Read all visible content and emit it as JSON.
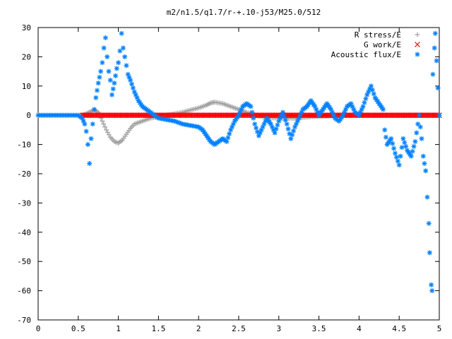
{
  "chart_data": {
    "type": "scatter",
    "title": "m2/n1.5/q1.7/r-+.10-j53/M25.0/512",
    "xlabel": "",
    "ylabel": "",
    "xlim": [
      0,
      5
    ],
    "ylim": [
      -70,
      30
    ],
    "xticks": [
      "0",
      "0.5",
      "1",
      "1.5",
      "2",
      "2.5",
      "3",
      "3.5",
      "4",
      "4.5",
      "5"
    ],
    "yticks": [
      "30",
      "20",
      "10",
      "0",
      "-10",
      "-20",
      "-30",
      "-40",
      "-50",
      "-60",
      "-70"
    ],
    "grid": false,
    "legend_position": "top-right",
    "series": [
      {
        "name": "R stress/E",
        "marker": "+",
        "color": "#a0a0a0",
        "points": [
          [
            0.55,
            0
          ],
          [
            0.6,
            0.5
          ],
          [
            0.65,
            1.2
          ],
          [
            0.7,
            1.8
          ],
          [
            0.75,
            1
          ],
          [
            0.8,
            -2
          ],
          [
            0.85,
            -5
          ],
          [
            0.9,
            -7.5
          ],
          [
            0.95,
            -9
          ],
          [
            1.0,
            -9.5
          ],
          [
            1.05,
            -8.5
          ],
          [
            1.1,
            -6.5
          ],
          [
            1.15,
            -4.5
          ],
          [
            1.2,
            -3
          ],
          [
            1.3,
            -2
          ],
          [
            1.4,
            -1
          ],
          [
            1.5,
            -0.5
          ],
          [
            1.6,
            0
          ],
          [
            1.7,
            0.5
          ],
          [
            1.8,
            1
          ],
          [
            1.9,
            1.8
          ],
          [
            2.0,
            2.5
          ],
          [
            2.1,
            3.5
          ],
          [
            2.15,
            4.2
          ],
          [
            2.2,
            4.5
          ],
          [
            2.3,
            4
          ],
          [
            2.4,
            3
          ],
          [
            2.5,
            2
          ],
          [
            2.6,
            1
          ],
          [
            2.7,
            0
          ],
          [
            2.8,
            -0.5
          ],
          [
            2.9,
            -0.8
          ],
          [
            3.0,
            -1
          ],
          [
            3.2,
            -1
          ],
          [
            3.4,
            -0.5
          ],
          [
            3.6,
            -0.3
          ],
          [
            3.8,
            0
          ],
          [
            4.0,
            0
          ],
          [
            4.2,
            0
          ],
          [
            4.5,
            0
          ],
          [
            4.7,
            0
          ],
          [
            4.8,
            0
          ],
          [
            4.9,
            0
          ],
          [
            5.0,
            0
          ]
        ]
      },
      {
        "name": "G work/E",
        "marker": "x",
        "color": "#ff0000",
        "points": [
          [
            0.55,
            0
          ],
          [
            0.6,
            0
          ],
          [
            0.7,
            0
          ],
          [
            0.8,
            0
          ],
          [
            0.9,
            0
          ],
          [
            1.0,
            0
          ],
          [
            1.1,
            0
          ],
          [
            1.2,
            0
          ],
          [
            1.3,
            0
          ],
          [
            1.4,
            0
          ],
          [
            1.5,
            0
          ],
          [
            1.6,
            0
          ],
          [
            1.7,
            0
          ],
          [
            1.8,
            0
          ],
          [
            1.9,
            0
          ],
          [
            2.0,
            0
          ],
          [
            2.1,
            0
          ],
          [
            2.2,
            0
          ],
          [
            2.3,
            0
          ],
          [
            2.4,
            0
          ],
          [
            2.5,
            0
          ],
          [
            2.6,
            0
          ],
          [
            2.7,
            0
          ],
          [
            2.8,
            0
          ],
          [
            2.9,
            0
          ],
          [
            3.0,
            0
          ],
          [
            3.1,
            0
          ],
          [
            3.2,
            0
          ],
          [
            3.3,
            0
          ],
          [
            3.4,
            0
          ],
          [
            3.5,
            0
          ],
          [
            3.6,
            0
          ],
          [
            3.7,
            0
          ],
          [
            3.8,
            0
          ],
          [
            3.9,
            0
          ],
          [
            4.0,
            0
          ],
          [
            4.1,
            0
          ],
          [
            4.2,
            0
          ],
          [
            4.3,
            0
          ],
          [
            4.4,
            0
          ],
          [
            4.5,
            0
          ],
          [
            4.6,
            0
          ],
          [
            4.7,
            0
          ],
          [
            4.8,
            0
          ],
          [
            4.9,
            0
          ],
          [
            5.0,
            0
          ]
        ]
      },
      {
        "name": "Acoustic flux/E",
        "marker": "*",
        "color": "#0080ff",
        "points": [
          [
            0.0,
            0
          ],
          [
            0.1,
            0
          ],
          [
            0.2,
            0
          ],
          [
            0.3,
            0
          ],
          [
            0.4,
            0
          ],
          [
            0.5,
            0
          ],
          [
            0.55,
            -1
          ],
          [
            0.58,
            -3
          ],
          [
            0.6,
            -5.5
          ],
          [
            0.62,
            -10
          ],
          [
            0.64,
            -16.5
          ],
          [
            0.66,
            -8
          ],
          [
            0.68,
            -3
          ],
          [
            0.7,
            2
          ],
          [
            0.72,
            6
          ],
          [
            0.75,
            11
          ],
          [
            0.78,
            15
          ],
          [
            0.8,
            18
          ],
          [
            0.82,
            23
          ],
          [
            0.84,
            26.5
          ],
          [
            0.86,
            20
          ],
          [
            0.88,
            15
          ],
          [
            0.9,
            12
          ],
          [
            0.92,
            7
          ],
          [
            0.95,
            11
          ],
          [
            0.98,
            16
          ],
          [
            1.0,
            18
          ],
          [
            1.02,
            22
          ],
          [
            1.04,
            28
          ],
          [
            1.06,
            23
          ],
          [
            1.08,
            20
          ],
          [
            1.1,
            17
          ],
          [
            1.12,
            14
          ],
          [
            1.15,
            12
          ],
          [
            1.2,
            8
          ],
          [
            1.25,
            5
          ],
          [
            1.3,
            3
          ],
          [
            1.35,
            2
          ],
          [
            1.4,
            1
          ],
          [
            1.45,
            0
          ],
          [
            1.5,
            -1
          ],
          [
            1.6,
            -1.5
          ],
          [
            1.7,
            -2
          ],
          [
            1.8,
            -3
          ],
          [
            1.9,
            -3.5
          ],
          [
            2.0,
            -4
          ],
          [
            2.05,
            -5
          ],
          [
            2.1,
            -7
          ],
          [
            2.15,
            -9
          ],
          [
            2.2,
            -10
          ],
          [
            2.25,
            -9
          ],
          [
            2.3,
            -8
          ],
          [
            2.35,
            -9
          ],
          [
            2.4,
            -5
          ],
          [
            2.45,
            -2
          ],
          [
            2.5,
            0
          ],
          [
            2.55,
            3
          ],
          [
            2.6,
            4
          ],
          [
            2.65,
            3
          ],
          [
            2.7,
            -3
          ],
          [
            2.75,
            -7
          ],
          [
            2.8,
            -4
          ],
          [
            2.85,
            -1
          ],
          [
            2.9,
            -3
          ],
          [
            2.95,
            -6
          ],
          [
            3.0,
            -2
          ],
          [
            3.05,
            1
          ],
          [
            3.1,
            -3
          ],
          [
            3.15,
            -8
          ],
          [
            3.2,
            -4
          ],
          [
            3.25,
            -1
          ],
          [
            3.3,
            2
          ],
          [
            3.35,
            3
          ],
          [
            3.4,
            5
          ],
          [
            3.45,
            3
          ],
          [
            3.5,
            0
          ],
          [
            3.55,
            2
          ],
          [
            3.6,
            4
          ],
          [
            3.65,
            2
          ],
          [
            3.7,
            -1
          ],
          [
            3.75,
            -2
          ],
          [
            3.8,
            0
          ],
          [
            3.85,
            3
          ],
          [
            3.9,
            4
          ],
          [
            3.95,
            1
          ],
          [
            4.0,
            0
          ],
          [
            4.05,
            3
          ],
          [
            4.1,
            7
          ],
          [
            4.15,
            10
          ],
          [
            4.2,
            6
          ],
          [
            4.25,
            4
          ],
          [
            4.3,
            2
          ],
          [
            4.32,
            -5
          ],
          [
            4.35,
            -10
          ],
          [
            4.4,
            -8
          ],
          [
            4.45,
            -13
          ],
          [
            4.5,
            -17
          ],
          [
            4.55,
            -8
          ],
          [
            4.6,
            -12
          ],
          [
            4.65,
            -14
          ],
          [
            4.7,
            -9
          ],
          [
            4.75,
            0
          ],
          [
            4.78,
            -8
          ],
          [
            4.8,
            -14
          ],
          [
            4.83,
            -19
          ],
          [
            4.85,
            -28
          ],
          [
            4.87,
            -37
          ],
          [
            4.88,
            -47
          ],
          [
            4.9,
            -58
          ],
          [
            4.91,
            -60
          ],
          [
            4.92,
            14
          ],
          [
            4.94,
            23
          ],
          [
            4.95,
            28
          ],
          [
            5.0,
            0
          ]
        ]
      }
    ]
  }
}
